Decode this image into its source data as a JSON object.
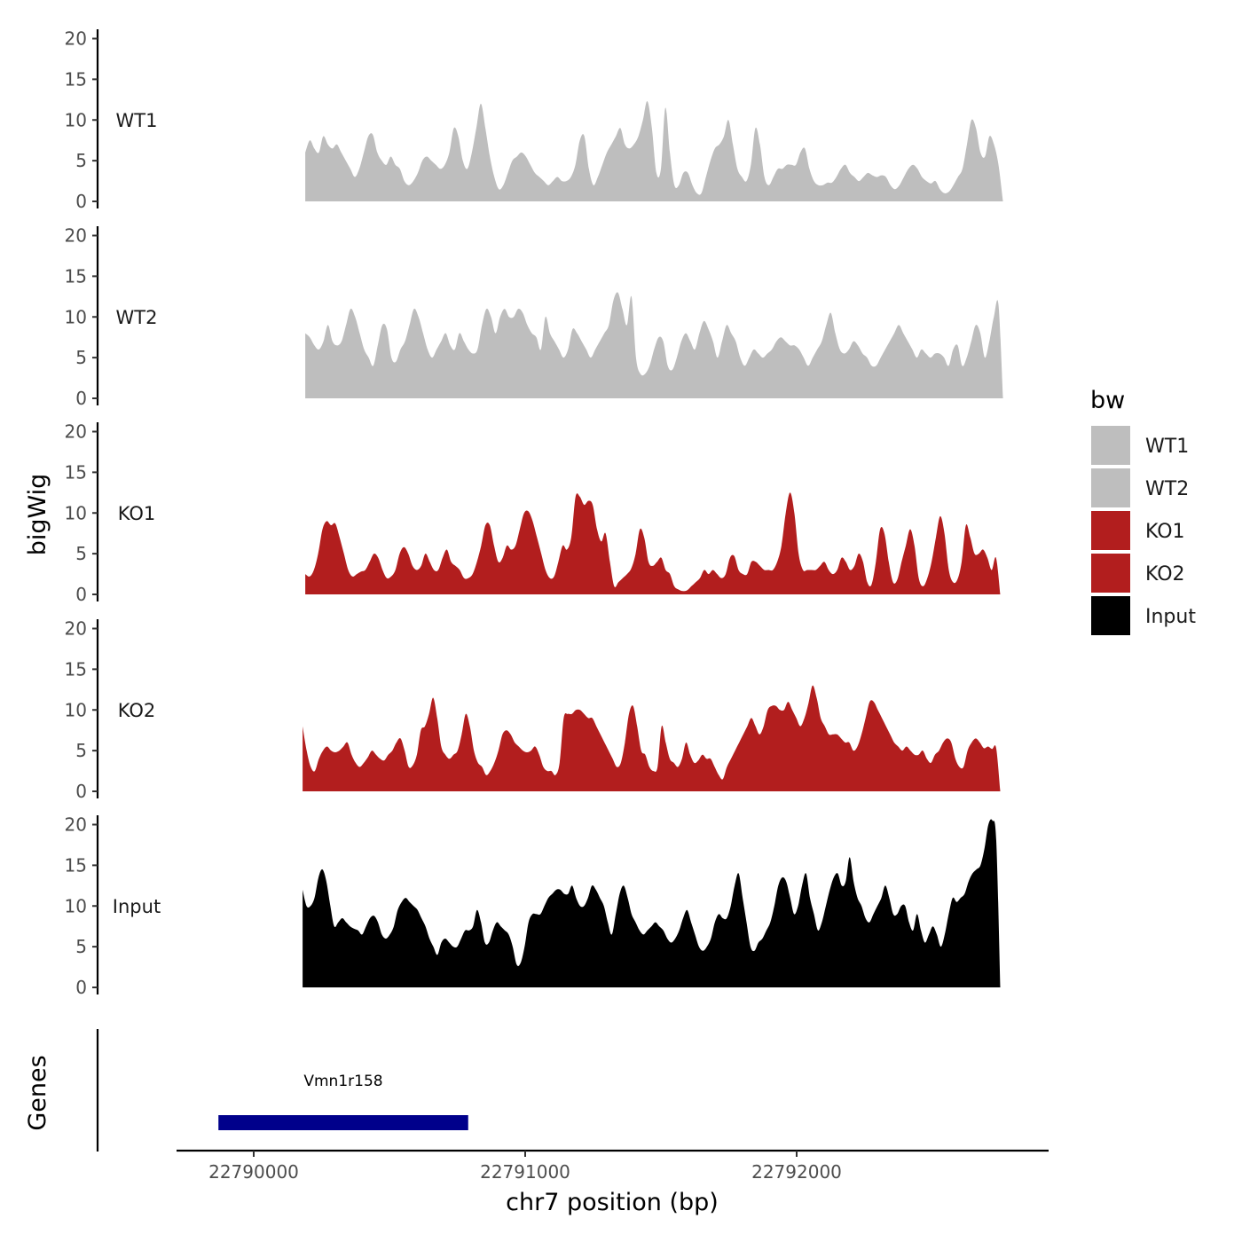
{
  "chart_data": {
    "type": "area",
    "ylabel": "bigWig",
    "xlabel": "chr7 position (bp)",
    "x_ticks": [
      22790000,
      22791000,
      22792000
    ],
    "x_tick_labels": [
      "22790000",
      "22791000",
      "22792000"
    ],
    "xlim": [
      22789720,
      22792940
    ],
    "ylim": [
      0,
      21
    ],
    "y_ticks": [
      0,
      5,
      10,
      15,
      20
    ],
    "legend": {
      "title": "bw",
      "position": "right",
      "entries": [
        {
          "label": "WT1",
          "color": "#bebebe"
        },
        {
          "label": "WT2",
          "color": "#bebebe"
        },
        {
          "label": "KO1",
          "color": "#b21e1e"
        },
        {
          "label": "KO2",
          "color": "#b21e1e"
        },
        {
          "label": "Input",
          "color": "#000000"
        }
      ]
    },
    "series": [
      {
        "name": "WT1",
        "color": "#bebebe",
        "x_start": 22790190,
        "x_end": 22792760,
        "values": [
          6,
          7.5,
          6.5,
          6,
          8,
          7,
          6.5,
          7,
          6,
          5,
          4,
          3,
          4,
          6,
          8,
          8.2,
          6,
          5,
          4.5,
          5.5,
          4.5,
          4,
          2.5,
          2,
          2.5,
          3.5,
          5,
          5.5,
          5,
          4.5,
          4,
          4.5,
          6,
          9,
          8,
          5,
          4,
          6,
          9,
          12,
          9,
          5.5,
          3,
          1.5,
          2,
          3.5,
          5,
          5.5,
          6,
          5.5,
          4.5,
          3.5,
          3,
          2.5,
          2,
          2.5,
          3,
          2.5,
          2.5,
          3,
          4.5,
          7.5,
          8,
          4,
          2,
          3,
          4.5,
          6,
          7,
          8,
          9,
          7,
          6.5,
          7,
          8,
          10,
          12.3,
          9,
          3.5,
          4,
          11.5,
          6,
          2,
          2,
          3.5,
          3.5,
          2,
          1,
          1,
          3,
          5,
          6.5,
          7,
          8,
          10,
          7,
          4,
          3,
          2.5,
          4.5,
          9,
          7,
          3,
          2,
          3,
          4,
          4,
          4.5,
          4.5,
          4.5,
          6,
          6.5,
          4,
          2.5,
          2,
          2,
          2.3,
          2.3,
          3,
          4,
          4.5,
          3.5,
          3,
          2.5,
          3,
          3.5,
          3.2,
          3,
          3.2,
          3,
          2,
          1.5,
          2,
          3,
          4,
          4.5,
          4,
          3,
          2.5,
          2.2,
          2.5,
          1.5,
          1,
          1.2,
          2,
          3,
          4,
          7,
          10,
          9,
          6,
          5.5,
          8,
          7,
          4.5,
          0
        ],
        "label": "WT1"
      },
      {
        "name": "WT2",
        "color": "#bebebe",
        "x_start": 22790190,
        "x_end": 22792760,
        "values": [
          8,
          7.5,
          6.5,
          6,
          7,
          9,
          7,
          6.5,
          7,
          9,
          11,
          10,
          8,
          6,
          5,
          4,
          6.5,
          9,
          8.5,
          5,
          4.5,
          6,
          7,
          9,
          11,
          10,
          8,
          6,
          5,
          6,
          7,
          8,
          6.5,
          6,
          8,
          7,
          6,
          5.5,
          6,
          9,
          11,
          10,
          8,
          10,
          11,
          10,
          10,
          11,
          10.5,
          9,
          8,
          7.5,
          6,
          10,
          8,
          7,
          6,
          5,
          6,
          8.5,
          8,
          7,
          6,
          5,
          6,
          7,
          8,
          9,
          12,
          13,
          11,
          9,
          12.5,
          5,
          3,
          3,
          4,
          6,
          7.5,
          7,
          4,
          3.5,
          5,
          7,
          8,
          7,
          6,
          8,
          9.5,
          8.5,
          7,
          5,
          7,
          9,
          8,
          7,
          5,
          4,
          5,
          6,
          5.5,
          5,
          5.5,
          6,
          7,
          7.5,
          7,
          6.5,
          6.5,
          6,
          5,
          4,
          5,
          6,
          7,
          9,
          10.5,
          8,
          6,
          5.5,
          6,
          7,
          6.5,
          5.5,
          5,
          4,
          4,
          5,
          6,
          7,
          8,
          9,
          8,
          7,
          6,
          5,
          6,
          5.5,
          5,
          5.5,
          5.5,
          5,
          4,
          6,
          6.5,
          4,
          5,
          7,
          9,
          8,
          5,
          7,
          10,
          11.5,
          0
        ],
        "label": "WT2"
      },
      {
        "name": "KO1",
        "color": "#b21e1e",
        "x_start": 22790190,
        "x_end": 22792750,
        "values": [
          2.5,
          2.2,
          3,
          5,
          8,
          9,
          8.5,
          8.7,
          7,
          5,
          3,
          2.2,
          2.5,
          2.8,
          3,
          4,
          5,
          4.5,
          3,
          2,
          2.2,
          3,
          5,
          5.8,
          5,
          3.5,
          3,
          3.5,
          5,
          4,
          3,
          3,
          4.5,
          5.5,
          4,
          3.5,
          3,
          2,
          2,
          2.5,
          4,
          6,
          8.5,
          8.5,
          6,
          4,
          4.5,
          6,
          5.5,
          6,
          8,
          10,
          10.2,
          9,
          7,
          5,
          3,
          2,
          2.2,
          4,
          6,
          5.5,
          7,
          12,
          12,
          11,
          11.5,
          11,
          8,
          6.5,
          7.5,
          4,
          1,
          1.5,
          2,
          2.5,
          3.2,
          5,
          8,
          7,
          4,
          3.5,
          4,
          4.5,
          3,
          2.5,
          1,
          0.6,
          0.4,
          0.5,
          1,
          1.5,
          2,
          3,
          2.5,
          3,
          2.5,
          2,
          2.5,
          4.5,
          4.7,
          3,
          2.5,
          2.5,
          4,
          4,
          3.5,
          3,
          3,
          3,
          4,
          6,
          10,
          12.5,
          10,
          5,
          3,
          3,
          3,
          3,
          3.5,
          4,
          3,
          2.5,
          3,
          4.5,
          4,
          3,
          3.5,
          5,
          4,
          1.5,
          1.2,
          4,
          8,
          7.5,
          4,
          1.5,
          1.8,
          4,
          6,
          8,
          6,
          2,
          1,
          2,
          4,
          7,
          9.6,
          7.5,
          3,
          1.5,
          1.8,
          4,
          8.5,
          7,
          5,
          5,
          5.5,
          4.5,
          3,
          4.5,
          0
        ],
        "label": "KO1"
      },
      {
        "name": "KO2",
        "color": "#b21e1e",
        "x_start": 22790180,
        "x_end": 22792750,
        "values": [
          8,
          5,
          3,
          2.5,
          4,
          5,
          5.5,
          5,
          4.8,
          5,
          5.5,
          6,
          4.5,
          3.5,
          3,
          3.5,
          4.2,
          5,
          4.5,
          4,
          3.8,
          4.5,
          5,
          6,
          6.5,
          5,
          3,
          3.2,
          4.5,
          7.5,
          8,
          9.5,
          11.5,
          9,
          5.5,
          4.5,
          4,
          4.5,
          5,
          7,
          9.5,
          8,
          5,
          3.5,
          3,
          2,
          2.5,
          3.5,
          5,
          7,
          7.5,
          7,
          6,
          5.5,
          5,
          4.8,
          5,
          5.5,
          4.5,
          3,
          2.5,
          2.5,
          2,
          3.5,
          9,
          9.5,
          9.5,
          10,
          10,
          9.5,
          9,
          9,
          8,
          7,
          6,
          5,
          4,
          3,
          3.5,
          6,
          9.5,
          10.5,
          8,
          5,
          4.5,
          3,
          2.5,
          3,
          8,
          6,
          4,
          3.5,
          3,
          4,
          6,
          4.5,
          3.5,
          3.8,
          4.5,
          4,
          4,
          3,
          2,
          1.5,
          3,
          4,
          5,
          6,
          7,
          8,
          9,
          8,
          7,
          8,
          10,
          10.5,
          10.5,
          10,
          10,
          11,
          10,
          9,
          8,
          9,
          10.8,
          13,
          11.5,
          9,
          8,
          7,
          7,
          7,
          6.5,
          6,
          6,
          5,
          5.5,
          7,
          9,
          11,
          11,
          10,
          9,
          8,
          7,
          6,
          5.5,
          5,
          5.5,
          5,
          4.5,
          4.5,
          5,
          4,
          3.5,
          4.5,
          5,
          6,
          6.5,
          6,
          4,
          3,
          3,
          5,
          6,
          6.5,
          6,
          5.3,
          5.5,
          5.2,
          5.3,
          0
        ],
        "label": "KO2"
      },
      {
        "name": "Input",
        "color": "#000000",
        "x_start": 22790180,
        "x_end": 22792750,
        "values": [
          12,
          10,
          10,
          11,
          13.5,
          14.5,
          13,
          10,
          7.5,
          8,
          8.5,
          8,
          7.5,
          7.2,
          7,
          6.5,
          7.5,
          8.5,
          8.8,
          8,
          6.5,
          6,
          6.5,
          7.5,
          9.5,
          10.5,
          11,
          10.5,
          10,
          9.5,
          8.5,
          7.5,
          6,
          5,
          4,
          5.5,
          6,
          5.5,
          5,
          5,
          6,
          7,
          7,
          7.5,
          9.5,
          8,
          5.5,
          5.5,
          7,
          8,
          7.5,
          7,
          6.5,
          5,
          2.8,
          3,
          5,
          8,
          9,
          9,
          9,
          10,
          11,
          11.5,
          12,
          12,
          11.5,
          11.5,
          12.5,
          11,
          10,
          10,
          11,
          12.5,
          12,
          11,
          10,
          8,
          6.5,
          9,
          11.5,
          12.5,
          11,
          9,
          8,
          7,
          6.5,
          7,
          7.5,
          8,
          7.5,
          7,
          6,
          5.5,
          6,
          7,
          8.5,
          9.5,
          8,
          6.5,
          5,
          4.5,
          5,
          6,
          8,
          9,
          8.5,
          8.5,
          10,
          12.5,
          14,
          11,
          8,
          5,
          4.5,
          5.5,
          6,
          7,
          8,
          10,
          12.5,
          13.5,
          13,
          11,
          9,
          10,
          12.5,
          14,
          11,
          9,
          7,
          8,
          10,
          12,
          13.5,
          14,
          12.5,
          13,
          16,
          13,
          11,
          10,
          8.5,
          8,
          9,
          10,
          11,
          12.5,
          11,
          9,
          9,
          10,
          10,
          8,
          7,
          9,
          7,
          5.5,
          6.5,
          7.5,
          6.5,
          5,
          6.5,
          9,
          11,
          10.5,
          11,
          11.5,
          13,
          14,
          14.5,
          15,
          17,
          20,
          20.5,
          18,
          0
        ],
        "label": "Input"
      }
    ],
    "genes": {
      "track_label": "Genes",
      "items": [
        {
          "name": "Vmn1r158",
          "start": 22789870,
          "end": 22790790,
          "color": "#00008b"
        }
      ]
    }
  }
}
